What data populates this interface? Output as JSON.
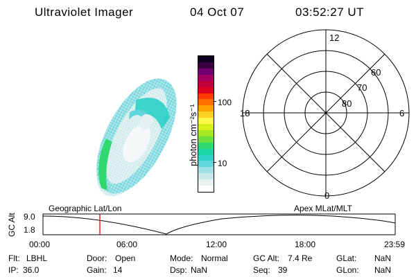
{
  "header": {
    "instrument": "Ultraviolet Imager",
    "date": "04 Oct 07",
    "time": "03:52:27 UT"
  },
  "colorbar": {
    "label": "photon cm⁻²s⁻¹",
    "ticks": [
      {
        "label": "100",
        "value": 100
      },
      {
        "label": "10",
        "value": 10
      }
    ],
    "colors": [
      "#ffffff",
      "#e6f2f2",
      "#c8e8ea",
      "#9fe0e6",
      "#60d6dc",
      "#2cd0c6",
      "#1ad4a4",
      "#30d870",
      "#6ce03c",
      "#a6e824",
      "#d8f01c",
      "#fff84c",
      "#ffd020",
      "#ffa000",
      "#ff7000",
      "#ff3c00",
      "#e00020",
      "#c0003c",
      "#a00060",
      "#700070",
      "#3c0040",
      "#100020"
    ]
  },
  "polar_grid": {
    "mlt_labels": [
      "12",
      "6",
      "0",
      "18"
    ],
    "lat_labels": [
      "60",
      "70",
      "80"
    ]
  },
  "timeline": {
    "axis_label": "GC Alt",
    "y_ticks": [
      "9.0",
      "1.8"
    ],
    "left_title": "Geographic Lat/Lon",
    "right_title": "Apex MLat/MLT",
    "x_ticks": [
      "00:00",
      "06:00",
      "12:00",
      "18:00",
      "23:59"
    ],
    "current_time_hours": 3.874
  },
  "info": [
    [
      {
        "k": "Flt:",
        "v": "LBHL"
      },
      {
        "k": "Door:",
        "v": "Open"
      },
      {
        "k": "Mode:",
        "v": "Normal"
      },
      {
        "k": "GC Alt:",
        "v": "7.4 Re"
      },
      {
        "k": "GLat:",
        "v": "NaN"
      }
    ],
    [
      {
        "k": "IP:",
        "v": "36.0"
      },
      {
        "k": "Gain:",
        "v": "14"
      },
      {
        "k": "Dsp:",
        "v": "NaN"
      },
      {
        "k": "Seq:",
        "v": "39"
      },
      {
        "k": "GLon:",
        "v": "NaN"
      }
    ]
  ]
}
